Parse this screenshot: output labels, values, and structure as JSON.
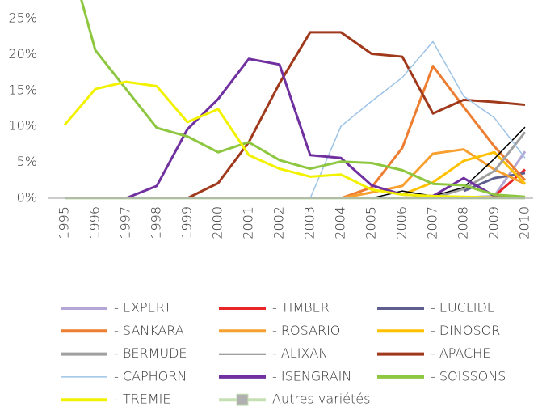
{
  "chart_data": {
    "type": "line",
    "categories": [
      "1995",
      "1996",
      "1997",
      "1998",
      "1999",
      "2000",
      "2001",
      "2002",
      "2003",
      "2004",
      "2005",
      "2006",
      "2007",
      "2008",
      "2009",
      "2010"
    ],
    "ylim": [
      0,
      25
    ],
    "yticks": [
      {
        "value": 0,
        "label": "0%"
      },
      {
        "value": 5,
        "label": "5%"
      },
      {
        "value": 10,
        "label": "10%"
      },
      {
        "value": 15,
        "label": "15%"
      },
      {
        "value": 20,
        "label": "20%"
      },
      {
        "value": 25,
        "label": "25%"
      }
    ],
    "grid": false,
    "legend": "bottom",
    "series": [
      {
        "name": "- EXPERT",
        "color": "#b4a7d6",
        "values": [
          null,
          null,
          null,
          null,
          null,
          null,
          null,
          null,
          null,
          null,
          null,
          null,
          null,
          0.1,
          0.3,
          6.5
        ]
      },
      {
        "name": "- TIMBER",
        "color": "#e8262a",
        "values": [
          null,
          null,
          null,
          null,
          null,
          null,
          null,
          null,
          null,
          null,
          null,
          null,
          null,
          null,
          0.3,
          4
        ]
      },
      {
        "name": "- EUCLIDE",
        "color": "#5f5f8f",
        "values": [
          null,
          null,
          null,
          null,
          null,
          null,
          null,
          null,
          null,
          null,
          null,
          null,
          null,
          1,
          2.8,
          3.5
        ]
      },
      {
        "name": "- SANKARA",
        "color": "#ed7d31",
        "values": [
          null,
          null,
          null,
          null,
          null,
          null,
          null,
          null,
          null,
          0,
          1.5,
          7,
          18.4,
          12.7,
          7.2,
          2.5
        ]
      },
      {
        "name": "- ROSARIO",
        "color": "#f7a030",
        "values": [
          null,
          null,
          null,
          null,
          null,
          null,
          null,
          null,
          null,
          0,
          0.8,
          1.7,
          6.2,
          6.8,
          4,
          2
        ]
      },
      {
        "name": "- DINOSOR",
        "color": "#ffc000",
        "values": [
          null,
          null,
          null,
          null,
          null,
          null,
          null,
          null,
          null,
          null,
          null,
          0.5,
          2.2,
          5.2,
          6.4,
          2
        ]
      },
      {
        "name": "- BERMUDE",
        "color": "#a0a0a0",
        "values": [
          null,
          null,
          null,
          null,
          null,
          null,
          null,
          null,
          null,
          null,
          null,
          null,
          0,
          1.3,
          3.8,
          9.2
        ]
      },
      {
        "name": "- ALIXAN",
        "color": "#000000",
        "values": [
          null,
          null,
          null,
          null,
          null,
          null,
          null,
          null,
          0,
          0,
          0,
          1,
          0.3,
          1.5,
          5.5,
          9.9
        ]
      },
      {
        "name": "- APACHE",
        "color": "#a0391b",
        "values": [
          0,
          0,
          0,
          0,
          0,
          2.1,
          7.8,
          16,
          23.1,
          23.1,
          20.1,
          19.7,
          11.8,
          13.7,
          13.4,
          13
        ]
      },
      {
        "name": "- CAPHORN",
        "color": "#9dc3e6",
        "values": [
          0,
          0,
          0,
          0,
          0,
          0,
          0,
          0,
          0,
          10,
          13.5,
          16.8,
          21.8,
          14.2,
          11.2,
          5.6
        ]
      },
      {
        "name": "- ISENGRAIN",
        "color": "#7030a0",
        "values": [
          0,
          0,
          0,
          1.7,
          9.6,
          13.8,
          19.4,
          18.6,
          6,
          5.6,
          1.8,
          0.5,
          0.3,
          2.8,
          0.3,
          0
        ]
      },
      {
        "name": "- SOISSONS",
        "color": "#8dc63f",
        "values": [
          36,
          20.6,
          15.2,
          9.8,
          8.6,
          6.4,
          7.8,
          5.3,
          4.1,
          5.1,
          4.9,
          3.9,
          2,
          1.8,
          0.5,
          0.2
        ]
      },
      {
        "name": "- TREMIE",
        "color": "#f2f200",
        "values": [
          10.2,
          15.2,
          16.2,
          15.6,
          10.6,
          12.4,
          6,
          4.1,
          3,
          3.3,
          1.2,
          0.5,
          0.3,
          0.2,
          0.1,
          0
        ]
      },
      {
        "name": "Autres variétés",
        "color": "#c6e0b4",
        "values": [
          0,
          0,
          0,
          0,
          0,
          0,
          0,
          0,
          0,
          0,
          0,
          0,
          0,
          0,
          0,
          0
        ]
      }
    ]
  }
}
